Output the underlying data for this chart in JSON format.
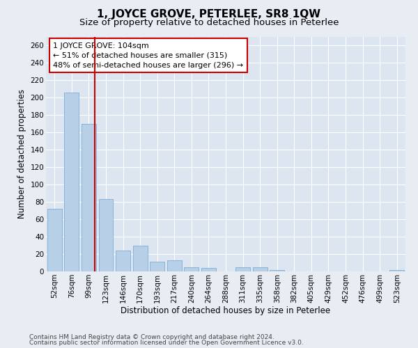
{
  "title": "1, JOYCE GROVE, PETERLEE, SR8 1QW",
  "subtitle": "Size of property relative to detached houses in Peterlee",
  "xlabel": "Distribution of detached houses by size in Peterlee",
  "ylabel": "Number of detached properties",
  "footnote1": "Contains HM Land Registry data © Crown copyright and database right 2024.",
  "footnote2": "Contains public sector information licensed under the Open Government Licence v3.0.",
  "bar_color": "#b8cfe8",
  "bar_edge_color": "#7aadd6",
  "background_color": "#dde6f0",
  "grid_color": "#ffffff",
  "fig_background": "#e8edf4",
  "annotation_box_color": "#cc0000",
  "vline_color": "#cc0000",
  "categories": [
    "52sqm",
    "76sqm",
    "99sqm",
    "123sqm",
    "146sqm",
    "170sqm",
    "193sqm",
    "217sqm",
    "240sqm",
    "264sqm",
    "288sqm",
    "311sqm",
    "335sqm",
    "358sqm",
    "382sqm",
    "405sqm",
    "429sqm",
    "452sqm",
    "476sqm",
    "499sqm",
    "523sqm"
  ],
  "values": [
    72,
    206,
    170,
    83,
    24,
    30,
    11,
    13,
    5,
    4,
    0,
    5,
    5,
    2,
    0,
    0,
    0,
    0,
    0,
    0,
    2
  ],
  "vline_position": 2.33,
  "annotation_line1": "1 JOYCE GROVE: 104sqm",
  "annotation_line2": "← 51% of detached houses are smaller (315)",
  "annotation_line3": "48% of semi-detached houses are larger (296) →",
  "ylim": [
    0,
    270
  ],
  "yticks": [
    0,
    20,
    40,
    60,
    80,
    100,
    120,
    140,
    160,
    180,
    200,
    220,
    240,
    260
  ],
  "title_fontsize": 11,
  "subtitle_fontsize": 9.5,
  "axis_label_fontsize": 8.5,
  "tick_fontsize": 7.5,
  "annotation_fontsize": 8,
  "footnote_fontsize": 6.5
}
